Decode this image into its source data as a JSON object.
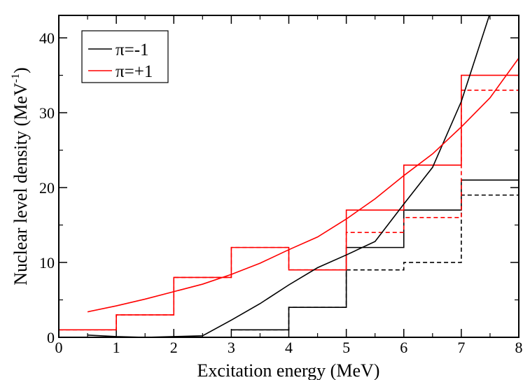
{
  "chart_data": {
    "type": "line",
    "title": "",
    "xlabel": "Excitation energy (MeV)",
    "ylabel": "Nuclear level density (MeV",
    "ylabel_sup": "-1",
    "ylabel_close": ")",
    "xlim": [
      0,
      8
    ],
    "ylim": [
      0,
      43
    ],
    "xticks": [
      0,
      1,
      2,
      3,
      4,
      5,
      6,
      7,
      8
    ],
    "yticks": [
      0,
      10,
      20,
      30,
      40
    ],
    "legend_position": "top-left",
    "legend": [
      {
        "label": "π=-1",
        "color": "#000000"
      },
      {
        "label": "π=+1",
        "color": "#ff0000"
      }
    ],
    "series": [
      {
        "name": "π=-1 histogram (solid)",
        "kind": "step",
        "color": "#000000",
        "dashed": false,
        "x": [
          3,
          4,
          5,
          6,
          7,
          8
        ],
        "values": [
          1,
          4,
          12,
          17,
          21,
          20
        ]
      },
      {
        "name": "π=-1 histogram (dashed)",
        "kind": "step",
        "color": "#000000",
        "dashed": true,
        "x": [
          3,
          4,
          5,
          6,
          7,
          8
        ],
        "values": [
          1,
          4,
          9,
          10,
          19,
          19
        ]
      },
      {
        "name": "π=+1 histogram (solid)",
        "kind": "step",
        "color": "#ff0000",
        "dashed": false,
        "x": [
          0,
          1,
          2,
          3,
          4,
          5,
          6,
          7,
          8
        ],
        "values": [
          1,
          3,
          8,
          12,
          9,
          17,
          23,
          35,
          35
        ]
      },
      {
        "name": "π=+1 histogram (dashed)",
        "kind": "step",
        "color": "#ff0000",
        "dashed": true,
        "x": [
          0,
          1,
          2,
          3,
          4,
          5,
          6,
          7,
          8
        ],
        "values": [
          1,
          3,
          8,
          12,
          9,
          14,
          16,
          33,
          33
        ]
      },
      {
        "name": "π=-1",
        "kind": "line",
        "color": "#000000",
        "dashed": false,
        "x": [
          0.5,
          1.0,
          1.5,
          2.0,
          2.5,
          3.0,
          3.5,
          4.0,
          4.5,
          5.0,
          5.5,
          6.0,
          6.5,
          7.0,
          7.5
        ],
        "values": [
          0.3,
          0.1,
          0.0,
          0.1,
          0.2,
          2.3,
          4.5,
          7.0,
          9.3,
          11.0,
          12.8,
          17.8,
          22.7,
          31.5,
          43.3
        ]
      },
      {
        "name": "π=+1",
        "kind": "line",
        "color": "#ff0000",
        "dashed": false,
        "x": [
          0.5,
          1.0,
          1.5,
          2.0,
          2.5,
          3.0,
          3.5,
          4.0,
          4.5,
          5.0,
          5.5,
          6.0,
          6.5,
          7.0,
          7.5,
          8.0
        ],
        "values": [
          3.4,
          4.2,
          5.1,
          6.1,
          7.1,
          8.4,
          9.9,
          11.7,
          13.4,
          15.8,
          18.5,
          21.6,
          24.5,
          28.1,
          32.0,
          37.3
        ]
      }
    ]
  }
}
